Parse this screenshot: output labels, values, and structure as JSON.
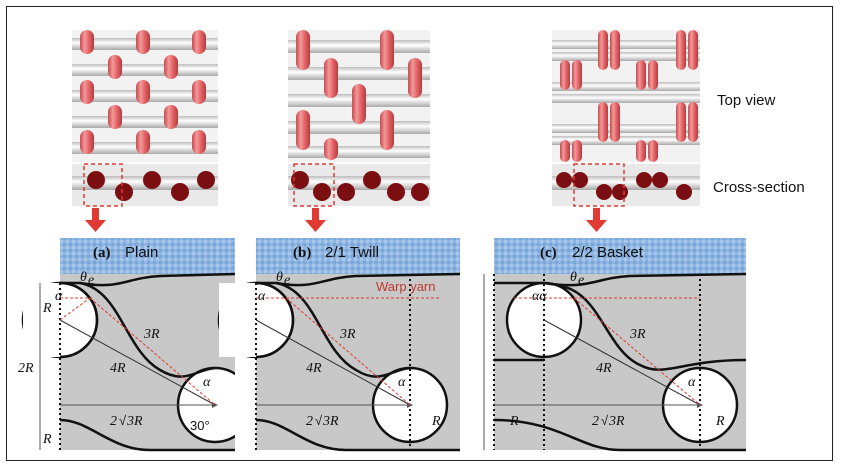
{
  "side_labels": {
    "top_view": "Top view",
    "cross_section": "Cross-section"
  },
  "panels": [
    {
      "letter": "(a)",
      "name": "Plain"
    },
    {
      "letter": "(b)",
      "name": "2/1 Twill"
    },
    {
      "letter": "(c)",
      "name": "2/2 Basket"
    }
  ],
  "annotations": {
    "theta": "θ",
    "theta_sub": "e",
    "alpha": "α",
    "alpha_double": "αα",
    "warp_yarn": "Warp yarn",
    "r": "R",
    "two_r": "2R",
    "three_r": "3R",
    "four_r": "4R",
    "sqrt_prefix": "2",
    "sqrt_suffix": "3R",
    "angle_30": "30°"
  },
  "colors": {
    "warp_yarn": "#e8686b",
    "weft_yarn": "#f4f4f4",
    "cross_section": "#7a0e10",
    "matrix": "#c8c8c8",
    "surface": "#8fb6e2",
    "arrow": "#e03a33",
    "dashed_red": "#e03a33"
  },
  "icons": {
    "arrow": "down-arrow-icon"
  }
}
